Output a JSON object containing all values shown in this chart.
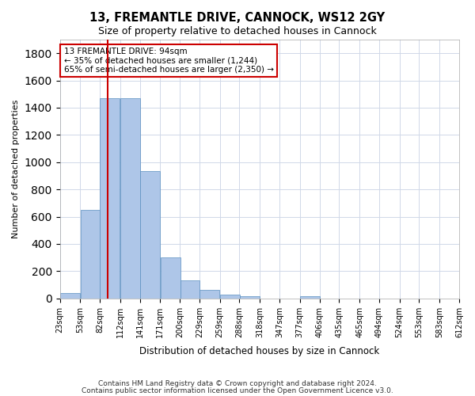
{
  "title_line1": "13, FREMANTLE DRIVE, CANNOCK, WS12 2GY",
  "title_line2": "Size of property relative to detached houses in Cannock",
  "xlabel": "Distribution of detached houses by size in Cannock",
  "ylabel": "Number of detached properties",
  "bar_color": "#aec6e8",
  "bar_edgecolor": "#5a8fc0",
  "vline_color": "#cc0000",
  "vline_x": 94,
  "annotation_text": "13 FREMANTLE DRIVE: 94sqm\n← 35% of detached houses are smaller (1,244)\n65% of semi-detached houses are larger (2,350) →",
  "annotation_box_edgecolor": "#cc0000",
  "bins": [
    23,
    53,
    82,
    112,
    141,
    171,
    200,
    229,
    259,
    288,
    318,
    347,
    377,
    406,
    435,
    465,
    494,
    524,
    553,
    583,
    612
  ],
  "bin_labels": [
    "23sqm",
    "53sqm",
    "82sqm",
    "112sqm",
    "141sqm",
    "171sqm",
    "200sqm",
    "229sqm",
    "259sqm",
    "288sqm",
    "318sqm",
    "347sqm",
    "377sqm",
    "406sqm",
    "435sqm",
    "465sqm",
    "494sqm",
    "524sqm",
    "553sqm",
    "583sqm",
    "612sqm"
  ],
  "bar_heights": [
    40,
    650,
    1470,
    1470,
    935,
    300,
    135,
    65,
    25,
    15,
    0,
    0,
    15,
    0,
    0,
    0,
    0,
    0,
    0,
    0
  ],
  "ylim": [
    0,
    1900
  ],
  "yticks": [
    0,
    200,
    400,
    600,
    800,
    1000,
    1200,
    1400,
    1600,
    1800
  ],
  "footer_line1": "Contains HM Land Registry data © Crown copyright and database right 2024.",
  "footer_line2": "Contains public sector information licensed under the Open Government Licence v3.0.",
  "background_color": "#ffffff",
  "grid_color": "#d0d8e8"
}
